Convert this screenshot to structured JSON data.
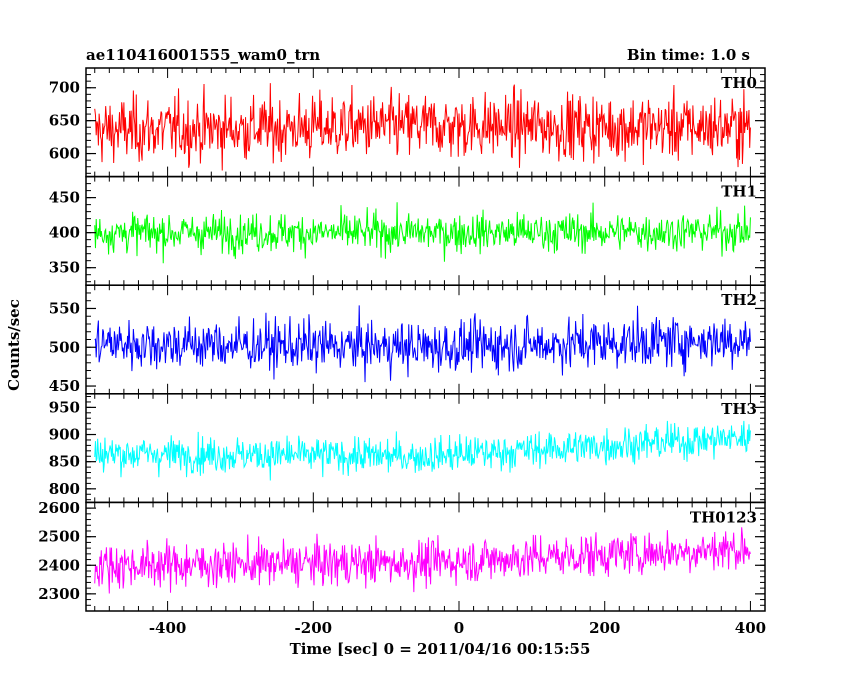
{
  "header": {
    "title_left": "ae110416001555_wam0_trn",
    "title_right": "Bin time: 1.0 s"
  },
  "chart_data": {
    "type": "line",
    "title": "ae110416001555_wam0_trn",
    "subtitle": "Bin time: 1.0 s",
    "xlabel": "Time [sec] 0 = 2011/04/16 00:15:55",
    "ylabel": "Counts/sec",
    "xlim": [
      -512,
      420
    ],
    "x_ticks": [
      -400,
      -200,
      0,
      200,
      400
    ],
    "x_range_of_data": [
      -500,
      400
    ],
    "bin_time_s": 1.0,
    "panels": [
      {
        "name": "TH0",
        "color": "#ff0000",
        "ylim": [
          565,
          730
        ],
        "yticks": [
          600,
          650,
          700
        ],
        "values": {
          "mean": 640,
          "spread": 45,
          "trend_start": 635,
          "trend_mid": 642,
          "trend_end": 640
        }
      },
      {
        "name": "TH1",
        "color": "#00ff00",
        "ylim": [
          325,
          480
        ],
        "yticks": [
          350,
          400,
          450
        ],
        "values": {
          "mean": 400,
          "spread": 25,
          "trend_start": 400,
          "trend_mid": 400,
          "trend_end": 402
        }
      },
      {
        "name": "TH2",
        "color": "#0000ff",
        "ylim": [
          440,
          580
        ],
        "yticks": [
          450,
          500,
          550
        ],
        "values": {
          "mean": 505,
          "spread": 30,
          "trend_start": 505,
          "trend_mid": 500,
          "trend_end": 510
        }
      },
      {
        "name": "TH3",
        "color": "#00ffff",
        "ylim": [
          775,
          975
        ],
        "yticks": [
          800,
          850,
          900,
          950
        ],
        "values": {
          "mean": 870,
          "spread": 30,
          "trend_start": 865,
          "trend_mid": 860,
          "trend_end": 895
        }
      },
      {
        "name": "TH0123",
        "color": "#ff00ff",
        "ylim": [
          2240,
          2620
        ],
        "yticks": [
          2300,
          2400,
          2500,
          2600
        ],
        "values": {
          "mean": 2410,
          "spread": 70,
          "trend_start": 2400,
          "trend_mid": 2410,
          "trend_end": 2460
        }
      }
    ],
    "grid": false,
    "legend": "panel labels at top-right of each panel"
  }
}
